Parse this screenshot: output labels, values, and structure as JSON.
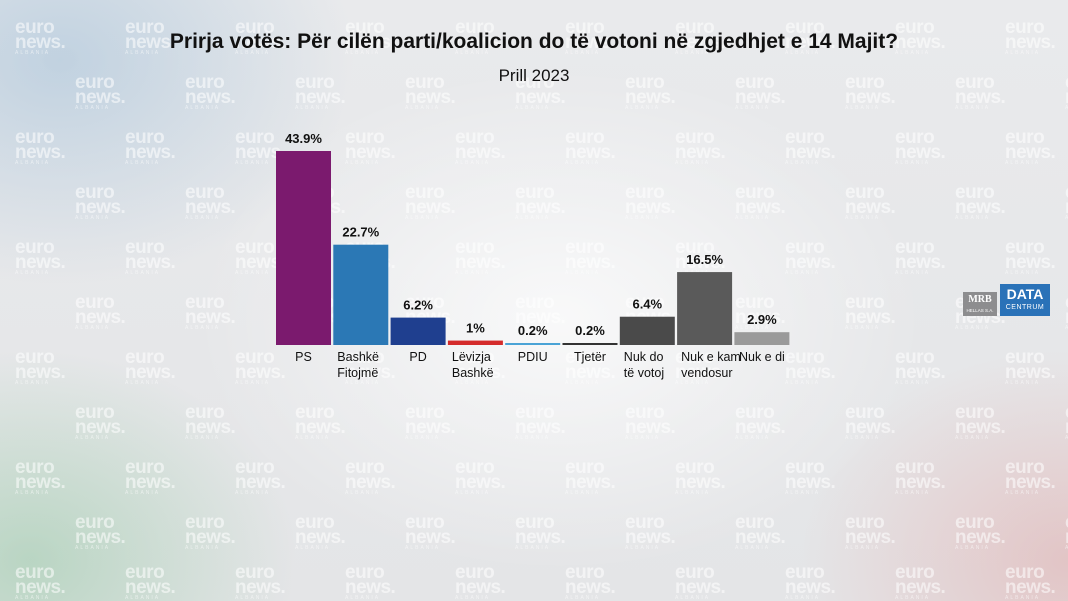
{
  "title": "Prirja votës: Për cilën parti/koalicion do të votoni në zgjedhjet e 14 Majit?",
  "subtitle": "Prill 2023",
  "watermark": {
    "line1": "euro",
    "line2": "news.",
    "line3": "ALBANIA"
  },
  "logo": {
    "mrb": "MRB",
    "mrb_sub": "HELLAS S.A.",
    "data": "DATA",
    "centrum": "CENTRUM"
  },
  "chart_data": {
    "type": "bar",
    "categories": [
      "PS",
      "Bashkë Fitojmë",
      "PD",
      "Lëvizja Bashkë",
      "PDIU",
      "Tjetër",
      "Nuk do të votoj",
      "Nuk e kam vendosur",
      "Nuk e di"
    ],
    "category_lines": [
      [
        "PS"
      ],
      [
        "Bashkë",
        "Fitojmë"
      ],
      [
        "PD"
      ],
      [
        "Lëvizja",
        "Bashkë"
      ],
      [
        "PDIU"
      ],
      [
        "Tjetër"
      ],
      [
        "Nuk do",
        "të votoj"
      ],
      [
        "Nuk e kam",
        "vendosur"
      ],
      [
        "Nuk e di"
      ]
    ],
    "values": [
      43.9,
      22.7,
      6.2,
      1,
      0.2,
      0.2,
      6.4,
      16.5,
      2.9
    ],
    "value_labels": [
      "43.9%",
      "22.7%",
      "6.2%",
      "1%",
      "0.2%",
      "0.2%",
      "6.4%",
      "16.5%",
      "2.9%"
    ],
    "colors": [
      "#7b1a6e",
      "#2b78b5",
      "#1f3f8f",
      "#d42b2b",
      "#4aa3d6",
      "#333333",
      "#4a4a4a",
      "#5a5a5a",
      "#9a9a9a"
    ],
    "ylim": [
      0,
      43.9
    ],
    "grid": false,
    "legend": "none"
  }
}
